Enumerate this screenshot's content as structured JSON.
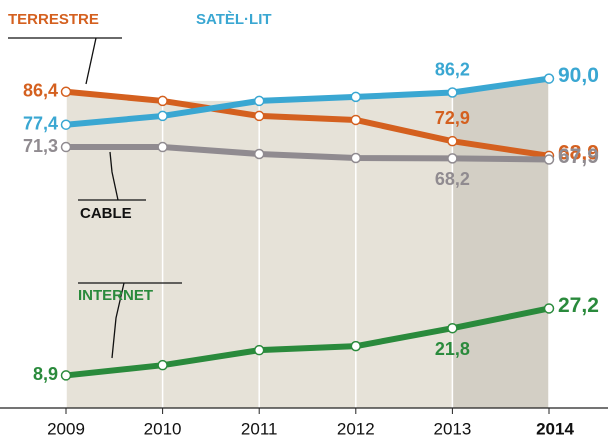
{
  "chart_data": {
    "type": "line",
    "categories": [
      "2009",
      "2010",
      "2011",
      "2012",
      "2013",
      "2014"
    ],
    "ylim": [
      0,
      100
    ],
    "series": [
      {
        "name": "TERRESTRE",
        "color": "#d4601f",
        "values": [
          86.4,
          83.9,
          79.8,
          78.7,
          72.9,
          68.9
        ],
        "value_labels": [
          "86,4",
          null,
          null,
          null,
          "72,9",
          "68,9"
        ]
      },
      {
        "name": "SATÈL·LIT",
        "color": "#3aa7d2",
        "values": [
          77.4,
          79.8,
          83.9,
          85.0,
          86.2,
          90.0
        ],
        "value_labels": [
          "77,4",
          null,
          null,
          null,
          "86,2",
          "90,0"
        ]
      },
      {
        "name": "CABLE",
        "color": "#908b90",
        "values": [
          71.3,
          71.3,
          69.4,
          68.3,
          68.2,
          67.9
        ],
        "value_labels": [
          "71,3",
          null,
          null,
          null,
          "68,2",
          "67,9"
        ]
      },
      {
        "name": "INTERNET",
        "color": "#2a8a3c",
        "values": [
          8.9,
          11.7,
          15.8,
          16.9,
          21.8,
          27.2
        ],
        "value_labels": [
          "8,9",
          null,
          null,
          null,
          "21,8",
          "27,2"
        ]
      }
    ]
  }
}
